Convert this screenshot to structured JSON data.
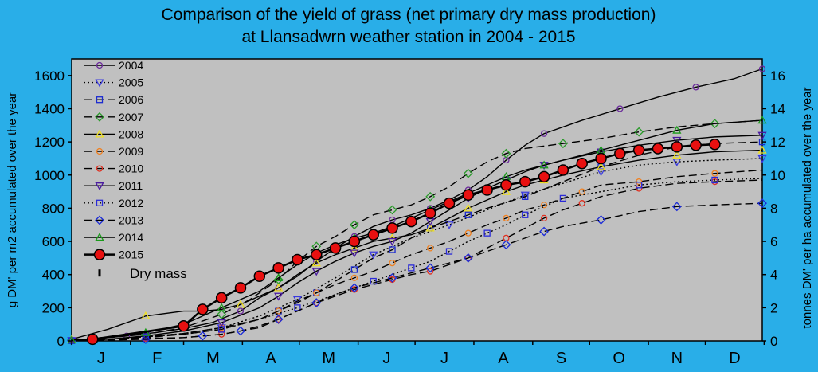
{
  "chart_data": {
    "type": "line",
    "title_lines": [
      "Comparison of the yield of grass (net primary dry mass production)",
      "at Llansadwrn weather station in 2004 - 2015"
    ],
    "ylabel_left": "g DM' per m2 accumulated over the year",
    "ylabel_right": "tonnes DM' per ha accumulated over the year",
    "ylim_left": [
      0,
      1700
    ],
    "ylim_right": [
      0,
      17
    ],
    "yticks_left": [
      "0",
      "200",
      "400",
      "600",
      "800",
      "1000",
      "1200",
      "1400",
      "1600"
    ],
    "yticks_right": [
      "0",
      "2",
      "4",
      "6",
      "8",
      "10",
      "12",
      "14",
      "16"
    ],
    "months": [
      "J",
      "F",
      "M",
      "A",
      "M",
      "J",
      "J",
      "A",
      "S",
      "O",
      "N",
      "D"
    ],
    "x_unit": "day of year",
    "xlim": [
      1,
      365
    ],
    "legend_position": "top-left",
    "legend_extra": "Dry mass",
    "series": [
      {
        "name": "2004",
        "color": "#6a2a9a",
        "marker": "circle",
        "dash": "",
        "x": [
          1,
          15,
          30,
          45,
          60,
          75,
          90,
          100,
          110,
          120,
          130,
          140,
          150,
          160,
          170,
          180,
          190,
          200,
          210,
          220,
          230,
          240,
          250,
          270,
          290,
          310,
          330,
          350,
          365
        ],
        "y": [
          5,
          15,
          30,
          50,
          75,
          110,
          180,
          260,
          320,
          390,
          480,
          560,
          630,
          690,
          730,
          760,
          800,
          850,
          910,
          990,
          1090,
          1180,
          1250,
          1330,
          1400,
          1470,
          1530,
          1580,
          1640
        ]
      },
      {
        "name": "2005",
        "color": "#3a3ae0",
        "marker": "triangle-down",
        "dash": "2 3",
        "x": [
          1,
          20,
          40,
          60,
          80,
          100,
          120,
          140,
          160,
          180,
          200,
          220,
          240,
          260,
          280,
          300,
          320,
          340,
          365
        ],
        "y": [
          2,
          10,
          25,
          45,
          80,
          150,
          250,
          380,
          520,
          620,
          700,
          790,
          880,
          950,
          1020,
          1060,
          1080,
          1090,
          1100
        ]
      },
      {
        "name": "2006",
        "color": "#1a2ad0",
        "marker": "square",
        "dash": "10 5",
        "x": [
          1,
          20,
          40,
          60,
          80,
          100,
          110,
          120,
          130,
          140,
          150,
          160,
          170,
          180,
          190,
          200,
          210,
          220,
          240,
          260,
          280,
          300,
          320,
          340,
          365
        ],
        "y": [
          2,
          8,
          20,
          40,
          70,
          130,
          180,
          240,
          290,
          360,
          430,
          500,
          550,
          620,
          680,
          720,
          760,
          800,
          870,
          960,
          1050,
          1120,
          1170,
          1190,
          1200
        ]
      },
      {
        "name": "2007",
        "color": "#2a9a2a",
        "marker": "diamond",
        "dash": "10 5",
        "x": [
          1,
          20,
          40,
          60,
          80,
          95,
          110,
          120,
          130,
          140,
          150,
          160,
          170,
          180,
          190,
          200,
          210,
          220,
          230,
          240,
          260,
          280,
          300,
          320,
          340,
          365
        ],
        "y": [
          5,
          20,
          40,
          80,
          160,
          250,
          370,
          480,
          570,
          630,
          700,
          760,
          790,
          820,
          870,
          930,
          1010,
          1080,
          1130,
          1160,
          1190,
          1220,
          1260,
          1290,
          1310,
          1330
        ]
      },
      {
        "name": "2008",
        "color": "#f0e020",
        "marker": "triangle-up",
        "dash": "",
        "x": [
          1,
          20,
          40,
          60,
          70,
          80,
          90,
          100,
          110,
          120,
          130,
          140,
          150,
          160,
          170,
          180,
          190,
          200,
          210,
          220,
          230,
          240,
          250,
          260,
          280,
          300,
          320,
          340,
          365
        ],
        "y": [
          10,
          70,
          150,
          180,
          180,
          190,
          220,
          270,
          320,
          400,
          470,
          520,
          560,
          600,
          620,
          640,
          680,
          740,
          800,
          850,
          900,
          940,
          970,
          1000,
          1050,
          1090,
          1120,
          1140,
          1150
        ]
      },
      {
        "name": "2009",
        "color": "#f08020",
        "marker": "circle",
        "dash": "10 5",
        "x": [
          1,
          20,
          40,
          60,
          80,
          100,
          110,
          120,
          130,
          140,
          150,
          160,
          170,
          180,
          190,
          200,
          210,
          220,
          230,
          240,
          250,
          260,
          270,
          280,
          300,
          320,
          340,
          365
        ],
        "y": [
          2,
          10,
          25,
          45,
          80,
          130,
          180,
          230,
          290,
          340,
          380,
          420,
          470,
          520,
          560,
          600,
          650,
          700,
          740,
          790,
          820,
          860,
          900,
          940,
          960,
          990,
          1010,
          1030
        ]
      },
      {
        "name": "2010",
        "color": "#e03020",
        "marker": "circle",
        "dash": "10 5",
        "x": [
          1,
          20,
          40,
          60,
          80,
          100,
          110,
          120,
          130,
          140,
          150,
          160,
          170,
          180,
          190,
          200,
          210,
          220,
          230,
          240,
          250,
          260,
          270,
          280,
          300,
          320,
          340,
          365
        ],
        "y": [
          2,
          8,
          15,
          20,
          40,
          80,
          130,
          180,
          230,
          270,
          310,
          340,
          370,
          400,
          420,
          460,
          500,
          560,
          620,
          680,
          740,
          790,
          830,
          870,
          920,
          950,
          960,
          970
        ]
      },
      {
        "name": "2011",
        "color": "#4a1aa0",
        "marker": "triangle-down",
        "dash": "",
        "x": [
          1,
          20,
          40,
          60,
          80,
          100,
          110,
          120,
          130,
          140,
          150,
          160,
          170,
          180,
          190,
          200,
          210,
          220,
          230,
          240,
          250,
          260,
          280,
          300,
          320,
          340,
          365
        ],
        "y": [
          2,
          10,
          30,
          60,
          110,
          200,
          270,
          350,
          420,
          480,
          530,
          570,
          600,
          650,
          720,
          790,
          860,
          920,
          970,
          1020,
          1060,
          1090,
          1140,
          1180,
          1210,
          1230,
          1240
        ]
      },
      {
        "name": "2012",
        "color": "#2a2ad8",
        "marker": "square",
        "dash": "2 3",
        "x": [
          1,
          20,
          40,
          60,
          80,
          100,
          120,
          140,
          160,
          170,
          180,
          190,
          200,
          210,
          220,
          230,
          240,
          250,
          260,
          280,
          300,
          320,
          340,
          365
        ],
        "y": [
          2,
          10,
          25,
          40,
          70,
          130,
          200,
          280,
          360,
          400,
          440,
          480,
          540,
          600,
          650,
          700,
          760,
          810,
          860,
          900,
          940,
          960,
          970,
          980
        ]
      },
      {
        "name": "2013",
        "color": "#1a2ad8",
        "marker": "diamond",
        "dash": "10 5",
        "x": [
          1,
          20,
          40,
          60,
          70,
          80,
          90,
          100,
          110,
          120,
          130,
          140,
          150,
          160,
          170,
          180,
          190,
          200,
          210,
          220,
          230,
          240,
          250,
          260,
          280,
          300,
          320,
          340,
          365
        ],
        "y": [
          2,
          5,
          10,
          20,
          30,
          40,
          60,
          90,
          130,
          180,
          230,
          280,
          320,
          350,
          380,
          410,
          440,
          470,
          500,
          540,
          580,
          620,
          660,
          690,
          730,
          780,
          810,
          820,
          830
        ]
      },
      {
        "name": "2014",
        "color": "#1a9a1a",
        "marker": "triangle-up",
        "dash": "",
        "x": [
          1,
          20,
          40,
          60,
          80,
          100,
          110,
          120,
          130,
          140,
          150,
          160,
          170,
          180,
          190,
          200,
          210,
          220,
          230,
          240,
          250,
          260,
          280,
          300,
          320,
          340,
          365
        ],
        "y": [
          5,
          20,
          50,
          100,
          200,
          300,
          380,
          460,
          530,
          580,
          620,
          650,
          690,
          740,
          790,
          840,
          890,
          940,
          990,
          1030,
          1060,
          1090,
          1150,
          1210,
          1270,
          1310,
          1330
        ]
      },
      {
        "name": "2015",
        "color": "#e81010",
        "marker": "bigcircle",
        "dash": "",
        "x": [
          12,
          60,
          70,
          80,
          90,
          100,
          110,
          120,
          130,
          140,
          150,
          160,
          170,
          180,
          190,
          200,
          210,
          220,
          230,
          240,
          250,
          260,
          270,
          280,
          290,
          300,
          310,
          320,
          330,
          340
        ],
        "y": [
          10,
          90,
          190,
          260,
          320,
          390,
          440,
          490,
          520,
          560,
          600,
          640,
          680,
          720,
          770,
          830,
          880,
          910,
          940,
          960,
          990,
          1030,
          1070,
          1100,
          1130,
          1150,
          1160,
          1170,
          1180,
          1185
        ]
      }
    ]
  }
}
